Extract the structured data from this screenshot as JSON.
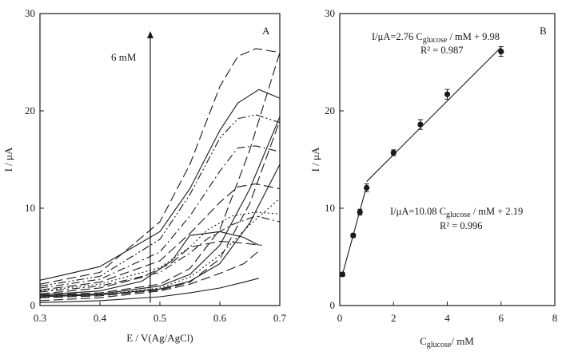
{
  "chart_data": [
    {
      "type": "line",
      "panel_label": "A",
      "xlabel": "E / V(Ag/AgCl)",
      "ylabel": "I / μA",
      "xlim": [
        0.3,
        0.7
      ],
      "ylim": [
        0,
        30
      ],
      "xticks": [
        "0.3",
        "0.4",
        "0.5",
        "0.6",
        "0.7"
      ],
      "yticks": [
        "0",
        "10",
        "20",
        "30"
      ],
      "arrow": {
        "label": "6 mM",
        "x": 0.484,
        "y_from": 0.3,
        "y_to": 28.2
      },
      "series": [
        {
          "name": "curve-01",
          "style": "solid",
          "x": [
            0.3,
            0.4,
            0.5,
            0.55,
            0.6,
            0.63,
            0.665,
            0.7
          ],
          "y": [
            2.6,
            4.0,
            7.6,
            12.0,
            18.0,
            20.8,
            22.2,
            21.3
          ]
        },
        {
          "name": "curve-02",
          "style": "longdash",
          "x": [
            0.3,
            0.4,
            0.5,
            0.55,
            0.6,
            0.63,
            0.66,
            0.7
          ],
          "y": [
            2.2,
            3.4,
            8.6,
            14.5,
            22.5,
            25.6,
            26.4,
            26.0
          ]
        },
        {
          "name": "curve-03",
          "style": "dashdotdot",
          "x": [
            0.3,
            0.4,
            0.5,
            0.55,
            0.6,
            0.63,
            0.66,
            0.7
          ],
          "y": [
            2.0,
            3.0,
            6.8,
            11.4,
            17.2,
            19.2,
            19.6,
            18.8
          ]
        },
        {
          "name": "curve-04",
          "style": "dashdot",
          "x": [
            0.3,
            0.4,
            0.5,
            0.55,
            0.6,
            0.63,
            0.66,
            0.7
          ],
          "y": [
            1.8,
            2.7,
            5.5,
            9.2,
            13.8,
            16.2,
            16.4,
            15.8
          ]
        },
        {
          "name": "curve-05",
          "style": "longdash",
          "x": [
            0.3,
            0.4,
            0.5,
            0.55,
            0.6,
            0.63,
            0.66,
            0.7
          ],
          "y": [
            1.6,
            2.4,
            4.6,
            7.4,
            10.6,
            12.2,
            12.5,
            12.0
          ]
        },
        {
          "name": "curve-06",
          "style": "dotted",
          "x": [
            0.3,
            0.4,
            0.5,
            0.55,
            0.58,
            0.62,
            0.66,
            0.7
          ],
          "y": [
            1.5,
            2.2,
            3.9,
            6.0,
            7.8,
            9.2,
            9.6,
            9.4
          ]
        },
        {
          "name": "curve-07",
          "style": "dashdot",
          "x": [
            0.3,
            0.4,
            0.5,
            0.55,
            0.58,
            0.62,
            0.66,
            0.7
          ],
          "y": [
            1.4,
            2.0,
            3.4,
            5.4,
            6.9,
            8.3,
            9.2,
            8.6
          ]
        },
        {
          "name": "curve-08",
          "style": "longdash",
          "x": [
            0.3,
            0.4,
            0.47,
            0.52,
            0.55,
            0.6,
            0.64,
            0.67
          ],
          "y": [
            1.2,
            1.8,
            2.9,
            4.4,
            6.0,
            6.6,
            6.4,
            6.2
          ]
        },
        {
          "name": "curve-09",
          "style": "solid",
          "x": [
            0.3,
            0.4,
            0.47,
            0.52,
            0.55,
            0.6,
            0.64,
            0.665
          ],
          "y": [
            1.1,
            1.5,
            2.5,
            4.6,
            7.2,
            7.6,
            7.0,
            6.2
          ]
        },
        {
          "name": "curve-10",
          "style": "longdash",
          "x": [
            0.3,
            0.4,
            0.5,
            0.55,
            0.6,
            0.64,
            0.665
          ],
          "y": [
            0.5,
            0.8,
            1.5,
            2.2,
            3.3,
            4.3,
            5.6
          ]
        },
        {
          "name": "curve-11",
          "style": "solid",
          "x": [
            0.3,
            0.4,
            0.5,
            0.55,
            0.6,
            0.64,
            0.665
          ],
          "y": [
            0.3,
            0.5,
            0.9,
            1.3,
            1.8,
            2.4,
            2.8
          ]
        },
        {
          "name": "sweep-solid-1",
          "style": "solid",
          "x": [
            0.3,
            0.4,
            0.5,
            0.55,
            0.6,
            0.65,
            0.7
          ],
          "y": [
            0.9,
            1.1,
            1.7,
            2.5,
            4.3,
            8.5,
            14.5
          ]
        },
        {
          "name": "sweep-dash-1",
          "style": "longdash",
          "x": [
            0.3,
            0.4,
            0.5,
            0.55,
            0.6,
            0.65,
            0.7
          ],
          "y": [
            0.8,
            1.0,
            1.6,
            2.4,
            4.8,
            10.5,
            19.0
          ]
        },
        {
          "name": "sweep-solid-2",
          "style": "solid",
          "x": [
            0.3,
            0.4,
            0.5,
            0.55,
            0.6,
            0.65,
            0.7
          ],
          "y": [
            1.0,
            1.2,
            2.0,
            3.2,
            6.2,
            12.0,
            19.4
          ]
        },
        {
          "name": "sweep-dash-2",
          "style": "longdash",
          "x": [
            0.3,
            0.4,
            0.5,
            0.55,
            0.6,
            0.65,
            0.7
          ],
          "y": [
            1.1,
            1.3,
            2.2,
            3.8,
            7.8,
            16.0,
            26.0
          ]
        },
        {
          "name": "sweep-dotted",
          "style": "dotted",
          "x": [
            0.3,
            0.4,
            0.5,
            0.55,
            0.6,
            0.65,
            0.7
          ],
          "y": [
            0.9,
            1.1,
            1.8,
            2.9,
            5.2,
            8.3,
            11.0
          ]
        }
      ]
    },
    {
      "type": "scatter",
      "panel_label": "B",
      "xlabel": "C",
      "xlabel_sub": "glucose",
      "xlabel_unit": "/ mM",
      "ylabel": "I / μA",
      "xlim": [
        0,
        8
      ],
      "ylim": [
        0,
        30
      ],
      "xticks": [
        "0",
        "2",
        "4",
        "6",
        "8"
      ],
      "yticks": [
        "0",
        "10",
        "20",
        "30"
      ],
      "points": [
        {
          "x": 0.1,
          "y": 3.2,
          "err": 0.2
        },
        {
          "x": 0.5,
          "y": 7.2,
          "err": 0.2
        },
        {
          "x": 0.75,
          "y": 9.6,
          "err": 0.3
        },
        {
          "x": 1.0,
          "y": 12.1,
          "err": 0.4
        },
        {
          "x": 2.0,
          "y": 15.7,
          "err": 0.3
        },
        {
          "x": 3.0,
          "y": 18.6,
          "err": 0.5
        },
        {
          "x": 4.0,
          "y": 21.7,
          "err": 0.5
        },
        {
          "x": 6.0,
          "y": 26.1,
          "err": 0.5
        }
      ],
      "fits": [
        {
          "name": "low-range",
          "slope": 10.08,
          "intercept": 2.19,
          "x_range": [
            0.1,
            1.0
          ]
        },
        {
          "name": "high-range",
          "slope": 2.76,
          "intercept": 9.98,
          "x_range": [
            1.0,
            6.0
          ]
        }
      ],
      "annotations": {
        "fit_high_prefix": "I/μA=2.76 C",
        "fit_high_sub": "glucose",
        "fit_high_suffix": " / mM + 9.98",
        "r2_high": "R² = 0.987",
        "fit_low_prefix": "I/μA=10.08 C",
        "fit_low_sub": "glucose",
        "fit_low_suffix": " / mM + 2.19",
        "r2_low": "R² = 0.996"
      }
    }
  ]
}
